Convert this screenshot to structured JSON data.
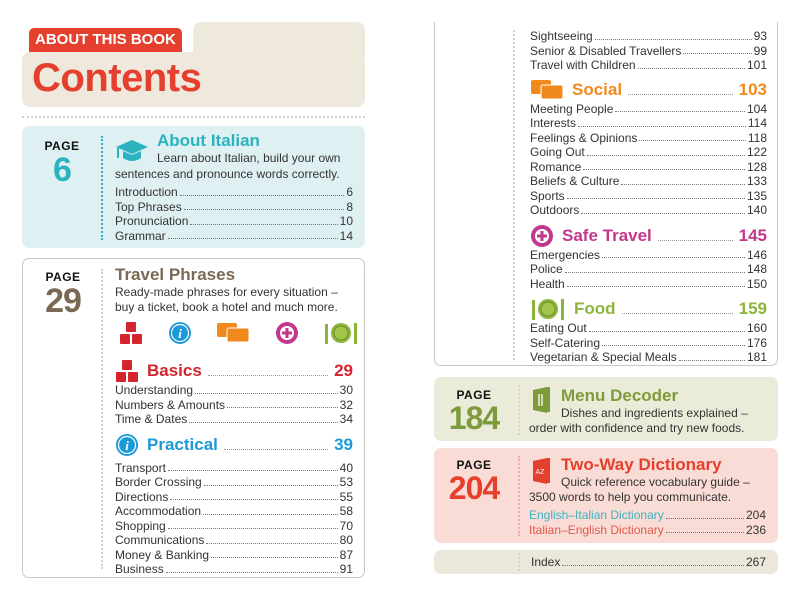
{
  "header": {
    "tag": "ABOUT THIS BOOK",
    "title": "Contents"
  },
  "page_label": "PAGE",
  "about": {
    "page": "6",
    "title": "About Italian",
    "desc1": "Learn about Italian, build your own",
    "desc2": "sentences and pronounce words correctly.",
    "color": "#2bb3c0",
    "items": [
      {
        "label": "Introduction",
        "page": "6"
      },
      {
        "label": "Top Phrases",
        "page": "8"
      },
      {
        "label": "Pronunciation",
        "page": "10"
      },
      {
        "label": "Grammar",
        "page": "14"
      }
    ]
  },
  "travel": {
    "page": "29",
    "title": "Travel Phrases",
    "desc1": "Ready-made phrases for every situation –",
    "desc2": "buy a ticket, book a hotel and much more.",
    "icons": [
      "abc-blocks-icon",
      "info-icon",
      "speech-bubbles-icon",
      "plus-circle-icon",
      "fork-plate-knife-icon"
    ]
  },
  "basics": {
    "title": "Basics",
    "page": "29",
    "color": "#d3242f",
    "items": [
      {
        "label": "Understanding",
        "page": "30"
      },
      {
        "label": "Numbers & Amounts",
        "page": "32"
      },
      {
        "label": "Time & Dates",
        "page": "34"
      }
    ]
  },
  "practical": {
    "title": "Practical",
    "page": "39",
    "color": "#1b9ad6",
    "items": [
      {
        "label": "Transport",
        "page": "40"
      },
      {
        "label": "Border Crossing",
        "page": "53"
      },
      {
        "label": "Directions",
        "page": "55"
      },
      {
        "label": "Accommodation",
        "page": "58"
      },
      {
        "label": "Shopping",
        "page": "70"
      },
      {
        "label": "Communications",
        "page": "80"
      },
      {
        "label": "Money & Banking",
        "page": "87"
      },
      {
        "label": "Business",
        "page": "91"
      }
    ],
    "items_continued": [
      {
        "label": "Sightseeing",
        "page": "93"
      },
      {
        "label": "Senior & Disabled Travellers",
        "page": "99"
      },
      {
        "label": "Travel with Children",
        "page": "101"
      }
    ]
  },
  "social": {
    "title": "Social",
    "page": "103",
    "color": "#f08a1d",
    "items": [
      {
        "label": "Meeting People",
        "page": "104"
      },
      {
        "label": "Interests",
        "page": "114"
      },
      {
        "label": "Feelings & Opinions",
        "page": "118"
      },
      {
        "label": "Going Out",
        "page": "122"
      },
      {
        "label": "Romance",
        "page": "128"
      },
      {
        "label": "Beliefs & Culture",
        "page": "133"
      },
      {
        "label": "Sports",
        "page": "135"
      },
      {
        "label": "Outdoors",
        "page": "140"
      }
    ]
  },
  "safe_travel": {
    "title": "Safe Travel",
    "page": "145",
    "color": "#c2388b",
    "items": [
      {
        "label": "Emergencies",
        "page": "146"
      },
      {
        "label": "Police",
        "page": "148"
      },
      {
        "label": "Health",
        "page": "150"
      }
    ]
  },
  "food": {
    "title": "Food",
    "page": "159",
    "color": "#8cb43a",
    "items": [
      {
        "label": "Eating Out",
        "page": "160"
      },
      {
        "label": "Self-Catering",
        "page": "176"
      },
      {
        "label": "Vegetarian & Special Meals",
        "page": "181"
      }
    ]
  },
  "menu_decoder": {
    "page": "184",
    "title": "Menu Decoder",
    "desc1": "Dishes and ingredients explained –",
    "desc2": "order with confidence and try new foods.",
    "color": "#7d9b3a"
  },
  "dictionary": {
    "page": "204",
    "title": "Two-Way Dictionary",
    "desc1": "Quick reference vocabulary guide –",
    "desc2": "3500 words to help you communicate.",
    "color": "#e5402d",
    "items": [
      {
        "label": "English–Italian Dictionary",
        "page": "204",
        "color": "#3fb0bb"
      },
      {
        "label": "Italian–English Dictionary",
        "page": "236",
        "color": "#e05a4a"
      }
    ]
  },
  "index": {
    "label": "Index",
    "page": "267"
  }
}
